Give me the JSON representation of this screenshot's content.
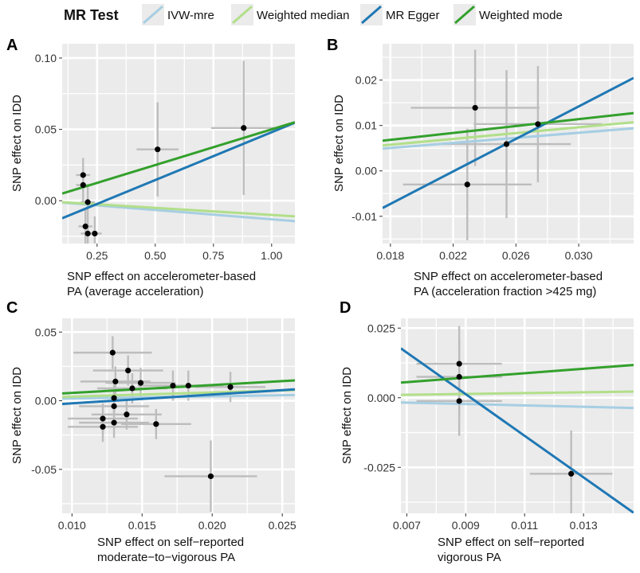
{
  "legend": {
    "title": "MR Test",
    "items": [
      {
        "label": "IVW-mre",
        "color": "#a6cee3"
      },
      {
        "label": "Weighted median",
        "color": "#b2df8a"
      },
      {
        "label": "MR Egger",
        "color": "#1f78b4"
      },
      {
        "label": "Weighted mode",
        "color": "#33a02c"
      }
    ]
  },
  "colors": {
    "panel_bg": "#ebebeb",
    "grid": "#ffffff",
    "error_bar": "#bdbdbd",
    "point": "#000000"
  },
  "chart_data": [
    {
      "panel": "A",
      "type": "scatter",
      "ylabel": "SNP effect on IDD",
      "xlabel_lines": [
        "SNP effect on accelerometer-based",
        "PA (average acceleration)"
      ],
      "xlim": [
        0.1,
        1.1
      ],
      "ylim": [
        -0.03,
        0.11
      ],
      "xticks": [
        0.25,
        0.5,
        0.75,
        1.0
      ],
      "xtick_labels": [
        "0.25",
        "0.50",
        "0.75",
        "1.00"
      ],
      "yticks": [
        0.0,
        0.05,
        0.1
      ],
      "ytick_labels": [
        "0.00",
        "0.05",
        "0.10"
      ],
      "points": [
        {
          "x": 0.19,
          "y": 0.018,
          "xerr": 0.03,
          "yerr": 0.012
        },
        {
          "x": 0.19,
          "y": 0.011,
          "xerr": 0.03,
          "yerr": 0.012
        },
        {
          "x": 0.21,
          "y": -0.001,
          "xerr": 0.03,
          "yerr": 0.012
        },
        {
          "x": 0.2,
          "y": -0.018,
          "xerr": 0.03,
          "yerr": 0.012
        },
        {
          "x": 0.21,
          "y": -0.023,
          "xerr": 0.03,
          "yerr": 0.012
        },
        {
          "x": 0.24,
          "y": -0.023,
          "xerr": 0.03,
          "yerr": 0.012
        },
        {
          "x": 0.51,
          "y": 0.036,
          "xerr": 0.09,
          "yerr": 0.033
        },
        {
          "x": 0.88,
          "y": 0.051,
          "xerr": 0.14,
          "yerr": 0.047
        }
      ],
      "lines": [
        {
          "method": "IVW-mre",
          "intercept": 0.0,
          "slope": -0.013
        },
        {
          "method": "Weighted median",
          "intercept": 0.0,
          "slope": -0.01
        },
        {
          "method": "MR Egger",
          "intercept": -0.019,
          "slope": 0.067
        },
        {
          "method": "Weighted mode",
          "intercept": 0.0,
          "slope": 0.05
        }
      ]
    },
    {
      "panel": "B",
      "type": "scatter",
      "ylabel": "SNP effect on IDD",
      "xlabel_lines": [
        "SNP effect on accelerometer-based",
        "PA (acceleration fraction >425 mg)"
      ],
      "xlim": [
        0.0175,
        0.0335
      ],
      "ylim": [
        -0.016,
        0.028
      ],
      "xticks": [
        0.018,
        0.022,
        0.026,
        0.03
      ],
      "xtick_labels": [
        "0.018",
        "0.022",
        "0.026",
        "0.030"
      ],
      "yticks": [
        -0.01,
        0.0,
        0.01,
        0.02
      ],
      "ytick_labels": [
        "-0.01",
        "0.00",
        "0.01",
        "0.02"
      ],
      "points": [
        {
          "x": 0.0234,
          "y": 0.0139,
          "xerr": 0.0041,
          "yerr": 0.0128
        },
        {
          "x": 0.0229,
          "y": -0.003,
          "xerr": 0.0041,
          "yerr": 0.0123
        },
        {
          "x": 0.0254,
          "y": 0.0059,
          "xerr": 0.0041,
          "yerr": 0.0163
        },
        {
          "x": 0.0274,
          "y": 0.0103,
          "xerr": 0.0041,
          "yerr": 0.0128
        }
      ],
      "lines": [
        {
          "method": "IVW-mre",
          "intercept": 0.0,
          "slope": 0.28
        },
        {
          "method": "Weighted median",
          "intercept": 0.0,
          "slope": 0.32
        },
        {
          "method": "MR Egger",
          "intercept": -0.0395,
          "slope": 1.79
        },
        {
          "method": "Weighted mode",
          "intercept": 0.0,
          "slope": 0.38
        }
      ]
    },
    {
      "panel": "C",
      "type": "scatter",
      "ylabel": "SNP effect on IDD",
      "xlabel_lines": [
        "SNP effect on self−reported",
        "moderate−to−vigorous PA"
      ],
      "xlim": [
        0.0093,
        0.0259
      ],
      "ylim": [
        -0.082,
        0.06
      ],
      "xticks": [
        0.01,
        0.015,
        0.02,
        0.025
      ],
      "xtick_labels": [
        "0.010",
        "0.015",
        "0.020",
        "0.025"
      ],
      "yticks": [
        -0.05,
        0.0,
        0.05
      ],
      "ytick_labels": [
        "-0.05",
        "0.00",
        "0.05"
      ],
      "points": [
        {
          "x": 0.0129,
          "y": 0.035,
          "xerr": 0.0028,
          "yerr": 0.012
        },
        {
          "x": 0.014,
          "y": 0.022,
          "xerr": 0.0025,
          "yerr": 0.011
        },
        {
          "x": 0.0131,
          "y": 0.014,
          "xerr": 0.0025,
          "yerr": 0.011
        },
        {
          "x": 0.0149,
          "y": 0.013,
          "xerr": 0.0025,
          "yerr": 0.011
        },
        {
          "x": 0.0143,
          "y": 0.009,
          "xerr": 0.0025,
          "yerr": 0.011
        },
        {
          "x": 0.0172,
          "y": 0.011,
          "xerr": 0.0025,
          "yerr": 0.011
        },
        {
          "x": 0.0183,
          "y": 0.011,
          "xerr": 0.0025,
          "yerr": 0.011
        },
        {
          "x": 0.0213,
          "y": 0.01,
          "xerr": 0.0025,
          "yerr": 0.011
        },
        {
          "x": 0.013,
          "y": 0.002,
          "xerr": 0.0025,
          "yerr": 0.011
        },
        {
          "x": 0.013,
          "y": -0.004,
          "xerr": 0.0025,
          "yerr": 0.011
        },
        {
          "x": 0.0139,
          "y": -0.01,
          "xerr": 0.0025,
          "yerr": 0.011
        },
        {
          "x": 0.0122,
          "y": -0.013,
          "xerr": 0.0025,
          "yerr": 0.011
        },
        {
          "x": 0.013,
          "y": -0.016,
          "xerr": 0.0025,
          "yerr": 0.011
        },
        {
          "x": 0.0122,
          "y": -0.019,
          "xerr": 0.0025,
          "yerr": 0.011
        },
        {
          "x": 0.016,
          "y": -0.017,
          "xerr": 0.0025,
          "yerr": 0.011
        },
        {
          "x": 0.0199,
          "y": -0.055,
          "xerr": 0.0033,
          "yerr": 0.026
        }
      ],
      "lines": [
        {
          "method": "IVW-mre",
          "intercept": 0.0,
          "slope": 0.16
        },
        {
          "method": "Weighted median",
          "intercept": 0.0,
          "slope": 0.3
        },
        {
          "method": "MR Egger",
          "intercept": -0.0083,
          "slope": 0.64
        },
        {
          "method": "Weighted mode",
          "intercept": 0.0,
          "slope": 0.57
        }
      ]
    },
    {
      "panel": "D",
      "type": "scatter",
      "ylabel": "SNP effect on IDD",
      "xlabel_lines": [
        "SNP effect on self−reported",
        "vigorous PA"
      ],
      "xlim": [
        0.0068,
        0.0147
      ],
      "ylim": [
        -0.0415,
        0.0285
      ],
      "xticks": [
        0.007,
        0.009,
        0.011,
        0.013
      ],
      "xtick_labels": [
        "0.007",
        "0.009",
        "0.011",
        "0.013"
      ],
      "yticks": [
        -0.025,
        0.0,
        0.025
      ],
      "ytick_labels": [
        "-0.025",
        "0.000",
        "0.025"
      ],
      "points": [
        {
          "x": 0.00878,
          "y": 0.0122,
          "xerr": 0.00145,
          "yerr": 0.0135
        },
        {
          "x": 0.00878,
          "y": 0.0075,
          "xerr": 0.00145,
          "yerr": 0.0135
        },
        {
          "x": 0.00878,
          "y": -0.0012,
          "xerr": 0.00145,
          "yerr": 0.0125
        },
        {
          "x": 0.01258,
          "y": -0.0273,
          "xerr": 0.0014,
          "yerr": 0.0155
        }
      ],
      "lines": [
        {
          "method": "IVW-mre",
          "intercept": 0.0,
          "slope": -0.25
        },
        {
          "method": "Weighted median",
          "intercept": 0.0,
          "slope": 0.15
        },
        {
          "method": "MR Egger",
          "intercept": 0.0685,
          "slope": -7.47
        },
        {
          "method": "Weighted mode",
          "intercept": 0.0,
          "slope": 0.8
        }
      ]
    }
  ]
}
